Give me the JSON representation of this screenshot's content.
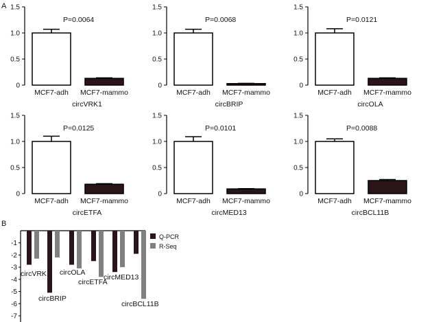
{
  "panel_labels": {
    "a": "A",
    "b": "B"
  },
  "colors": {
    "qpcr": "#2a1419",
    "rseq": "#808080",
    "bar_white": "#ffffff",
    "bar_dark": "#2a1419",
    "axis": "#000000"
  },
  "chart_data": [
    {
      "type": "bar",
      "title": "circVRK1",
      "categories": [
        "MCF7-adh",
        "MCF7-mammo"
      ],
      "values": [
        1.0,
        0.13
      ],
      "error": [
        0.07,
        0.01
      ],
      "annotation": "P=0.0064",
      "ylim": [
        0,
        1.5
      ],
      "yticks": [
        "0",
        "0.5",
        "1.0",
        "1.5"
      ]
    },
    {
      "type": "bar",
      "title": "circBRIP",
      "categories": [
        "MCF7-adh",
        "MCF7-mammo"
      ],
      "values": [
        1.0,
        0.03
      ],
      "error": [
        0.07,
        0.005
      ],
      "annotation": "P=0.0068",
      "ylim": [
        0,
        1.5
      ],
      "yticks": [
        "0",
        "0.5",
        "1.0",
        "1.5"
      ]
    },
    {
      "type": "bar",
      "title": "circOLA",
      "categories": [
        "MCF7-adh",
        "MCF7-mammo"
      ],
      "values": [
        1.0,
        0.13
      ],
      "error": [
        0.08,
        0.01
      ],
      "annotation": "P=0.0121",
      "ylim": [
        0,
        1.5
      ],
      "yticks": [
        "0",
        "0.5",
        "1.0",
        "1.5"
      ]
    },
    {
      "type": "bar",
      "title": "circETFA",
      "categories": [
        "MCF7-adh",
        "MCF7-mammo"
      ],
      "values": [
        1.0,
        0.18
      ],
      "error": [
        0.1,
        0.01
      ],
      "annotation": "P=0.0125",
      "ylim": [
        0,
        1.5
      ],
      "yticks": [
        "0",
        "0.5",
        "1.0",
        "1.5"
      ]
    },
    {
      "type": "bar",
      "title": "circMED13",
      "categories": [
        "MCF7-adh",
        "MCF7-mammo"
      ],
      "values": [
        1.0,
        0.09
      ],
      "error": [
        0.09,
        0.005
      ],
      "annotation": "P=0.0101",
      "ylim": [
        0,
        1.5
      ],
      "yticks": [
        "0",
        "0.5",
        "1.0",
        "1.5"
      ]
    },
    {
      "type": "bar",
      "title": "circBCL11B",
      "categories": [
        "MCF7-adh",
        "MCF7-mammo"
      ],
      "values": [
        1.0,
        0.25
      ],
      "error": [
        0.05,
        0.02
      ],
      "annotation": "P=0.0088",
      "ylim": [
        0,
        1.5
      ],
      "yticks": [
        "0",
        "0.5",
        "1.0",
        "1.5"
      ]
    },
    {
      "type": "bar",
      "categories": [
        "circVRK",
        "circBRIP",
        "circOLA",
        "circETFA",
        "circMED13",
        "circBCL11B"
      ],
      "series": [
        {
          "name": "Q-PCR",
          "values": [
            -2.8,
            -5.1,
            -2.8,
            -2.5,
            -3.4,
            -1.9
          ]
        },
        {
          "name": "R-Seq",
          "values": [
            -2.3,
            -2.2,
            -3.1,
            -3.8,
            -3.0,
            -5.6
          ]
        }
      ],
      "ylim": [
        -7,
        0
      ],
      "yticks": [
        "-1",
        "-2",
        "-3",
        "-4",
        "-5",
        "-6",
        "-7"
      ],
      "legend": "right"
    }
  ]
}
